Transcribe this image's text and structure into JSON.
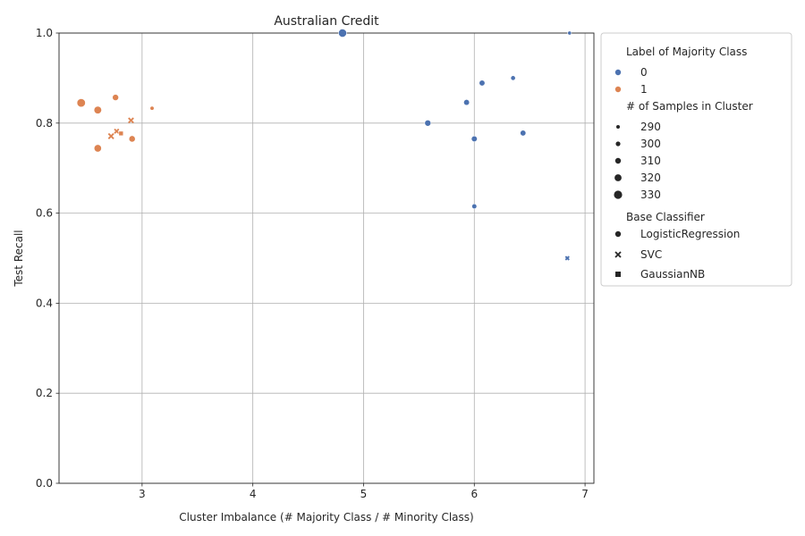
{
  "chart_data": {
    "type": "scatter",
    "title": "Australian Credit",
    "xlabel": "Cluster Imbalance (# Majority Class / # Minority Class)",
    "ylabel": "Test Recall",
    "xlim": [
      2.25,
      7.08
    ],
    "ylim": [
      0.0,
      1.0
    ],
    "xticks": [
      3,
      4,
      5,
      6,
      7
    ],
    "yticks": [
      0.0,
      0.2,
      0.4,
      0.6,
      0.8,
      1.0
    ],
    "xtick_labels": [
      "3",
      "4",
      "5",
      "6",
      "7"
    ],
    "ytick_labels": [
      "0.0",
      "0.2",
      "0.4",
      "0.6",
      "0.8",
      "1.0"
    ],
    "grid": true,
    "legend_position": "outside-right",
    "colors": {
      "0": "#4c72b0",
      "1": "#dd8452"
    },
    "legend": {
      "hue_title": "Label of Majority Class",
      "hue_entries": [
        "0",
        "1"
      ],
      "size_title": "# of Samples in Cluster",
      "size_entries": [
        "290",
        "300",
        "310",
        "320",
        "330"
      ],
      "style_title": "Base Classifier",
      "style_entries": [
        "LogisticRegression",
        "SVC",
        "GaussianNB"
      ]
    },
    "points": [
      {
        "x": 2.45,
        "y": 0.845,
        "label": "1",
        "samples": 332,
        "classifier": "LogisticRegression"
      },
      {
        "x": 2.6,
        "y": 0.829,
        "label": "1",
        "samples": 325,
        "classifier": "LogisticRegression"
      },
      {
        "x": 2.76,
        "y": 0.857,
        "label": "1",
        "samples": 313,
        "classifier": "LogisticRegression"
      },
      {
        "x": 2.6,
        "y": 0.744,
        "label": "1",
        "samples": 323,
        "classifier": "LogisticRegression"
      },
      {
        "x": 2.91,
        "y": 0.765,
        "label": "1",
        "samples": 314,
        "classifier": "LogisticRegression"
      },
      {
        "x": 3.09,
        "y": 0.833,
        "label": "1",
        "samples": 294,
        "classifier": "LogisticRegression"
      },
      {
        "x": 2.9,
        "y": 0.806,
        "label": "1",
        "samples": 306,
        "classifier": "SVC"
      },
      {
        "x": 2.72,
        "y": 0.771,
        "label": "1",
        "samples": 308,
        "classifier": "SVC"
      },
      {
        "x": 2.77,
        "y": 0.782,
        "label": "1",
        "samples": 300,
        "classifier": "SVC"
      },
      {
        "x": 2.81,
        "y": 0.777,
        "label": "1",
        "samples": 302,
        "classifier": "GaussianNB"
      },
      {
        "x": 4.81,
        "y": 1.0,
        "label": "0",
        "samples": 330,
        "classifier": "LogisticRegression"
      },
      {
        "x": 5.58,
        "y": 0.8,
        "label": "0",
        "samples": 313,
        "classifier": "LogisticRegression"
      },
      {
        "x": 5.93,
        "y": 0.846,
        "label": "0",
        "samples": 309,
        "classifier": "LogisticRegression"
      },
      {
        "x": 6.07,
        "y": 0.889,
        "label": "0",
        "samples": 309,
        "classifier": "LogisticRegression"
      },
      {
        "x": 6.35,
        "y": 0.9,
        "label": "0",
        "samples": 300,
        "classifier": "LogisticRegression"
      },
      {
        "x": 6.0,
        "y": 0.765,
        "label": "0",
        "samples": 310,
        "classifier": "LogisticRegression"
      },
      {
        "x": 6.44,
        "y": 0.778,
        "label": "0",
        "samples": 309,
        "classifier": "LogisticRegression"
      },
      {
        "x": 6.0,
        "y": 0.615,
        "label": "0",
        "samples": 302,
        "classifier": "LogisticRegression"
      },
      {
        "x": 6.86,
        "y": 1.0,
        "label": "0",
        "samples": 292,
        "classifier": "LogisticRegression"
      },
      {
        "x": 6.84,
        "y": 0.5,
        "label": "0",
        "samples": 293,
        "classifier": "SVC"
      }
    ]
  }
}
